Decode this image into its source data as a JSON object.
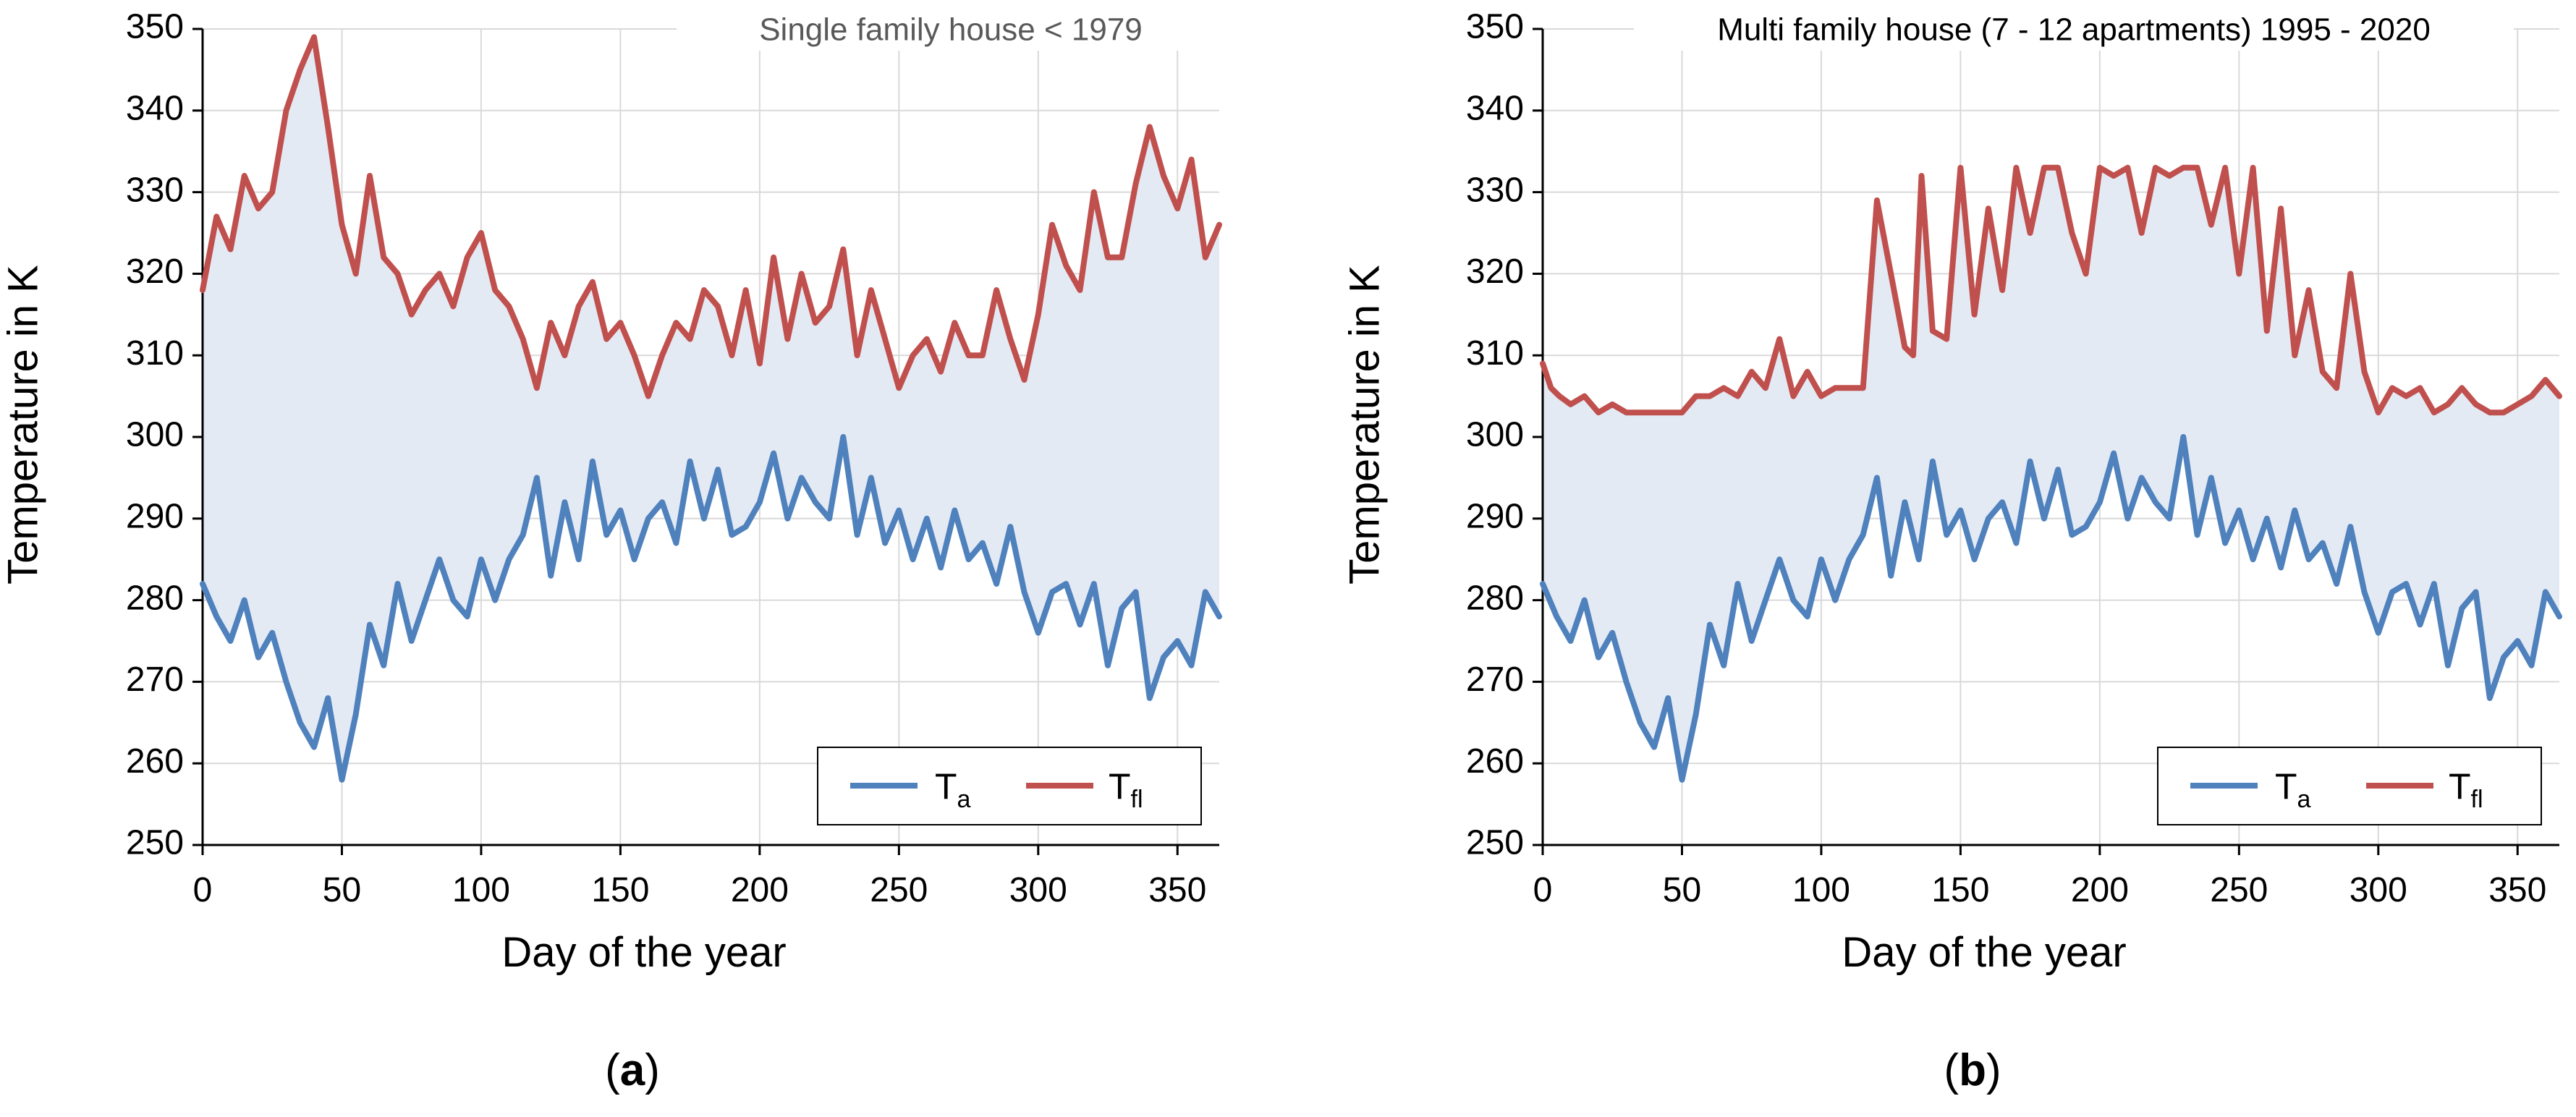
{
  "chart_data": [
    {
      "type": "line",
      "panel_label": "a",
      "title": "Single family house < 1979",
      "xlabel": "Day of the year",
      "ylabel": "Temperature in K",
      "xlim": [
        0,
        365
      ],
      "ylim": [
        250,
        350
      ],
      "xticks": [
        0,
        50,
        100,
        150,
        200,
        250,
        300,
        350
      ],
      "yticks": [
        250,
        260,
        270,
        280,
        290,
        300,
        310,
        320,
        330,
        340,
        350
      ],
      "grid": true,
      "legend_position": "bottom-right",
      "fill_between": [
        "T_a",
        "T_fl"
      ],
      "colors": {
        "T_a": "#4f81bd",
        "T_fl": "#c0504d",
        "fill": "#e4eaf4",
        "grid": "#d9d9d9"
      },
      "series": [
        {
          "name": "T_a",
          "label_main": "T",
          "label_sub": "a",
          "x": [
            0,
            5,
            10,
            15,
            20,
            25,
            30,
            35,
            40,
            45,
            50,
            55,
            60,
            65,
            70,
            75,
            80,
            85,
            90,
            95,
            100,
            105,
            110,
            115,
            120,
            125,
            130,
            135,
            140,
            145,
            150,
            155,
            160,
            165,
            170,
            175,
            180,
            185,
            190,
            195,
            200,
            205,
            210,
            215,
            220,
            225,
            230,
            235,
            240,
            245,
            250,
            255,
            260,
            265,
            270,
            275,
            280,
            285,
            290,
            295,
            300,
            305,
            310,
            315,
            320,
            325,
            330,
            335,
            340,
            345,
            350,
            355,
            360,
            365
          ],
          "values": [
            282,
            278,
            275,
            280,
            273,
            276,
            270,
            265,
            262,
            268,
            258,
            266,
            277,
            272,
            282,
            275,
            280,
            285,
            280,
            278,
            285,
            280,
            285,
            288,
            295,
            283,
            292,
            285,
            297,
            288,
            291,
            285,
            290,
            292,
            287,
            297,
            290,
            296,
            288,
            289,
            292,
            298,
            290,
            295,
            292,
            290,
            300,
            288,
            295,
            287,
            291,
            285,
            290,
            284,
            291,
            285,
            287,
            282,
            289,
            281,
            276,
            281,
            282,
            277,
            282,
            272,
            279,
            281,
            268,
            273,
            275,
            272,
            281,
            278
          ]
        },
        {
          "name": "T_fl",
          "label_main": "T",
          "label_sub": "fl",
          "x": [
            0,
            5,
            10,
            15,
            20,
            25,
            30,
            35,
            40,
            45,
            50,
            55,
            60,
            65,
            70,
            75,
            80,
            85,
            90,
            95,
            100,
            105,
            110,
            115,
            120,
            125,
            130,
            135,
            140,
            145,
            150,
            155,
            160,
            165,
            170,
            175,
            180,
            185,
            190,
            195,
            200,
            205,
            210,
            215,
            220,
            225,
            230,
            235,
            240,
            245,
            250,
            255,
            260,
            265,
            270,
            275,
            280,
            285,
            290,
            295,
            300,
            305,
            310,
            315,
            320,
            325,
            330,
            335,
            340,
            345,
            350,
            355,
            360,
            365
          ],
          "values": [
            318,
            327,
            323,
            332,
            328,
            330,
            340,
            345,
            349,
            338,
            326,
            320,
            332,
            322,
            320,
            315,
            318,
            320,
            316,
            322,
            325,
            318,
            316,
            312,
            306,
            314,
            310,
            316,
            319,
            312,
            314,
            310,
            305,
            310,
            314,
            312,
            318,
            316,
            310,
            318,
            309,
            322,
            312,
            320,
            314,
            316,
            323,
            310,
            318,
            312,
            306,
            310,
            312,
            308,
            314,
            310,
            310,
            318,
            312,
            307,
            315,
            326,
            321,
            318,
            330,
            322,
            322,
            331,
            338,
            332,
            328,
            334,
            322,
            326
          ]
        }
      ]
    },
    {
      "type": "line",
      "panel_label": "b",
      "title": "Multi family house (7 - 12 apartments) 1995 - 2020",
      "xlabel": "Day of the year",
      "ylabel": "Temperature in K",
      "xlim": [
        0,
        365
      ],
      "ylim": [
        250,
        350
      ],
      "xticks": [
        0,
        50,
        100,
        150,
        200,
        250,
        300,
        350
      ],
      "yticks": [
        250,
        260,
        270,
        280,
        290,
        300,
        310,
        320,
        330,
        340,
        350
      ],
      "grid": true,
      "legend_position": "bottom-right",
      "fill_between": [
        "T_a",
        "T_fl"
      ],
      "colors": {
        "T_a": "#4f81bd",
        "T_fl": "#c0504d",
        "fill": "#e4eaf4",
        "grid": "#d9d9d9"
      },
      "series": [
        {
          "name": "T_a",
          "label_main": "T",
          "label_sub": "a",
          "x": [
            0,
            5,
            10,
            15,
            20,
            25,
            30,
            35,
            40,
            45,
            50,
            55,
            60,
            65,
            70,
            75,
            80,
            85,
            90,
            95,
            100,
            105,
            110,
            115,
            120,
            125,
            130,
            135,
            140,
            145,
            150,
            155,
            160,
            165,
            170,
            175,
            180,
            185,
            190,
            195,
            200,
            205,
            210,
            215,
            220,
            225,
            230,
            235,
            240,
            245,
            250,
            255,
            260,
            265,
            270,
            275,
            280,
            285,
            290,
            295,
            300,
            305,
            310,
            315,
            320,
            325,
            330,
            335,
            340,
            345,
            350,
            355,
            360,
            365
          ],
          "values": [
            282,
            278,
            275,
            280,
            273,
            276,
            270,
            265,
            262,
            268,
            258,
            266,
            277,
            272,
            282,
            275,
            280,
            285,
            280,
            278,
            285,
            280,
            285,
            288,
            295,
            283,
            292,
            285,
            297,
            288,
            291,
            285,
            290,
            292,
            287,
            297,
            290,
            296,
            288,
            289,
            292,
            298,
            290,
            295,
            292,
            290,
            300,
            288,
            295,
            287,
            291,
            285,
            290,
            284,
            291,
            285,
            287,
            282,
            289,
            281,
            276,
            281,
            282,
            277,
            282,
            272,
            279,
            281,
            268,
            273,
            275,
            272,
            281,
            278
          ]
        },
        {
          "name": "T_fl",
          "label_main": "T",
          "label_sub": "fl",
          "x": [
            0,
            3,
            6,
            10,
            15,
            20,
            25,
            30,
            35,
            40,
            45,
            50,
            55,
            60,
            65,
            70,
            75,
            80,
            85,
            90,
            95,
            100,
            105,
            110,
            115,
            120,
            125,
            130,
            133,
            136,
            140,
            145,
            150,
            155,
            160,
            165,
            170,
            175,
            180,
            185,
            190,
            195,
            200,
            205,
            210,
            215,
            220,
            225,
            230,
            235,
            240,
            245,
            250,
            255,
            260,
            265,
            270,
            275,
            280,
            285,
            290,
            295,
            300,
            305,
            310,
            315,
            320,
            325,
            330,
            335,
            340,
            345,
            350,
            355,
            360,
            365
          ],
          "values": [
            309,
            306,
            305,
            304,
            305,
            303,
            304,
            303,
            303,
            303,
            303,
            303,
            305,
            305,
            306,
            305,
            308,
            306,
            312,
            305,
            308,
            305,
            306,
            306,
            306,
            329,
            320,
            311,
            310,
            332,
            313,
            312,
            333,
            315,
            328,
            318,
            333,
            325,
            333,
            333,
            325,
            320,
            333,
            332,
            333,
            325,
            333,
            332,
            333,
            333,
            326,
            333,
            320,
            333,
            313,
            328,
            310,
            318,
            308,
            306,
            320,
            308,
            303,
            306,
            305,
            306,
            303,
            304,
            306,
            304,
            303,
            303,
            304,
            305,
            307,
            305
          ]
        }
      ]
    }
  ]
}
